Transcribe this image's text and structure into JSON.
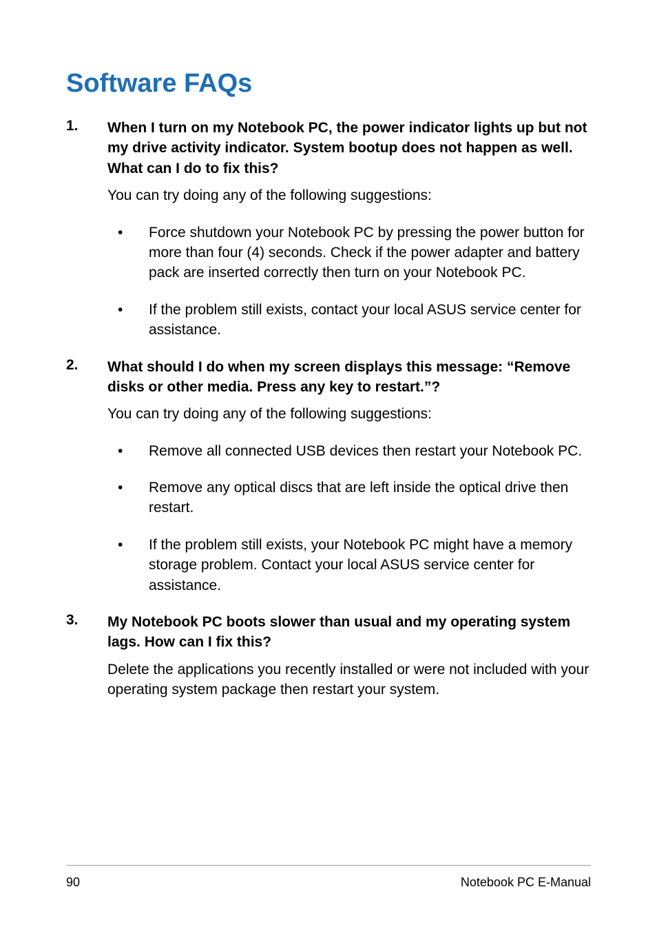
{
  "title": "Software FAQs",
  "title_color": "#1f6eb4",
  "q1": {
    "num": "1.",
    "text": "When I turn on my Notebook PC, the power indicator lights up but not my drive activity indicator. System bootup does not happen as well. What can I do to fix this?",
    "intro": "You can try doing any of the following suggestions:",
    "bullets": [
      "Force shutdown your Notebook PC by pressing the power button for more than four (4) seconds. Check if the power adapter and battery pack are inserted correctly then turn on your Notebook PC.",
      "If the problem still exists, contact your local ASUS service center for assistance."
    ]
  },
  "q2": {
    "num": "2.",
    "text": "What should I do when my screen displays this message: “Remove disks or other media. Press any key to restart.”?",
    "intro": "You can try doing any of the following suggestions:",
    "bullets": [
      "Remove all connected USB devices then restart your Notebook PC.",
      "Remove any optical discs that are left inside the optical drive then restart.",
      "If the problem still exists, your Notebook PC might have a memory storage problem. Contact your local ASUS service center for assistance."
    ]
  },
  "q3": {
    "num": "3.",
    "text": "My Notebook PC boots slower than usual and my operating system lags. How can I fix this?",
    "answer": "Delete the applications you recently installed or were not included with your operating system package then restart your system."
  },
  "footer": {
    "page": "90",
    "text": "Notebook PC E-Manual"
  }
}
